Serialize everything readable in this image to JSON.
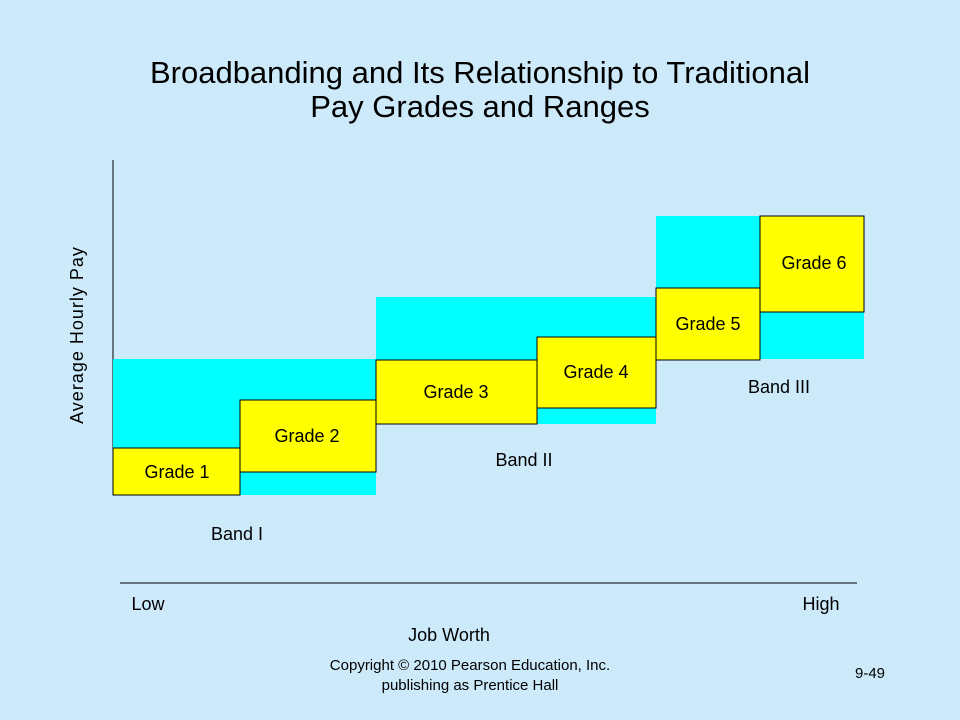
{
  "title_lines": [
    "Broadbanding and Its Relationship to Traditional",
    "Pay Grades and Ranges"
  ],
  "y_axis_label": "Average Hourly Pay",
  "x_axis_label": "Job Worth",
  "x_low": "Low",
  "x_high": "High",
  "bands": [
    "Band I",
    "Band II",
    "Band III"
  ],
  "grades": [
    "Grade 1",
    "Grade 2",
    "Grade 3",
    "Grade 4",
    "Grade 5",
    "Grade 6"
  ],
  "footer": {
    "copyright_lines": [
      "Copyright © 2010 Pearson Education, Inc.",
      "publishing as Prentice Hall"
    ],
    "page": "9-49"
  }
}
